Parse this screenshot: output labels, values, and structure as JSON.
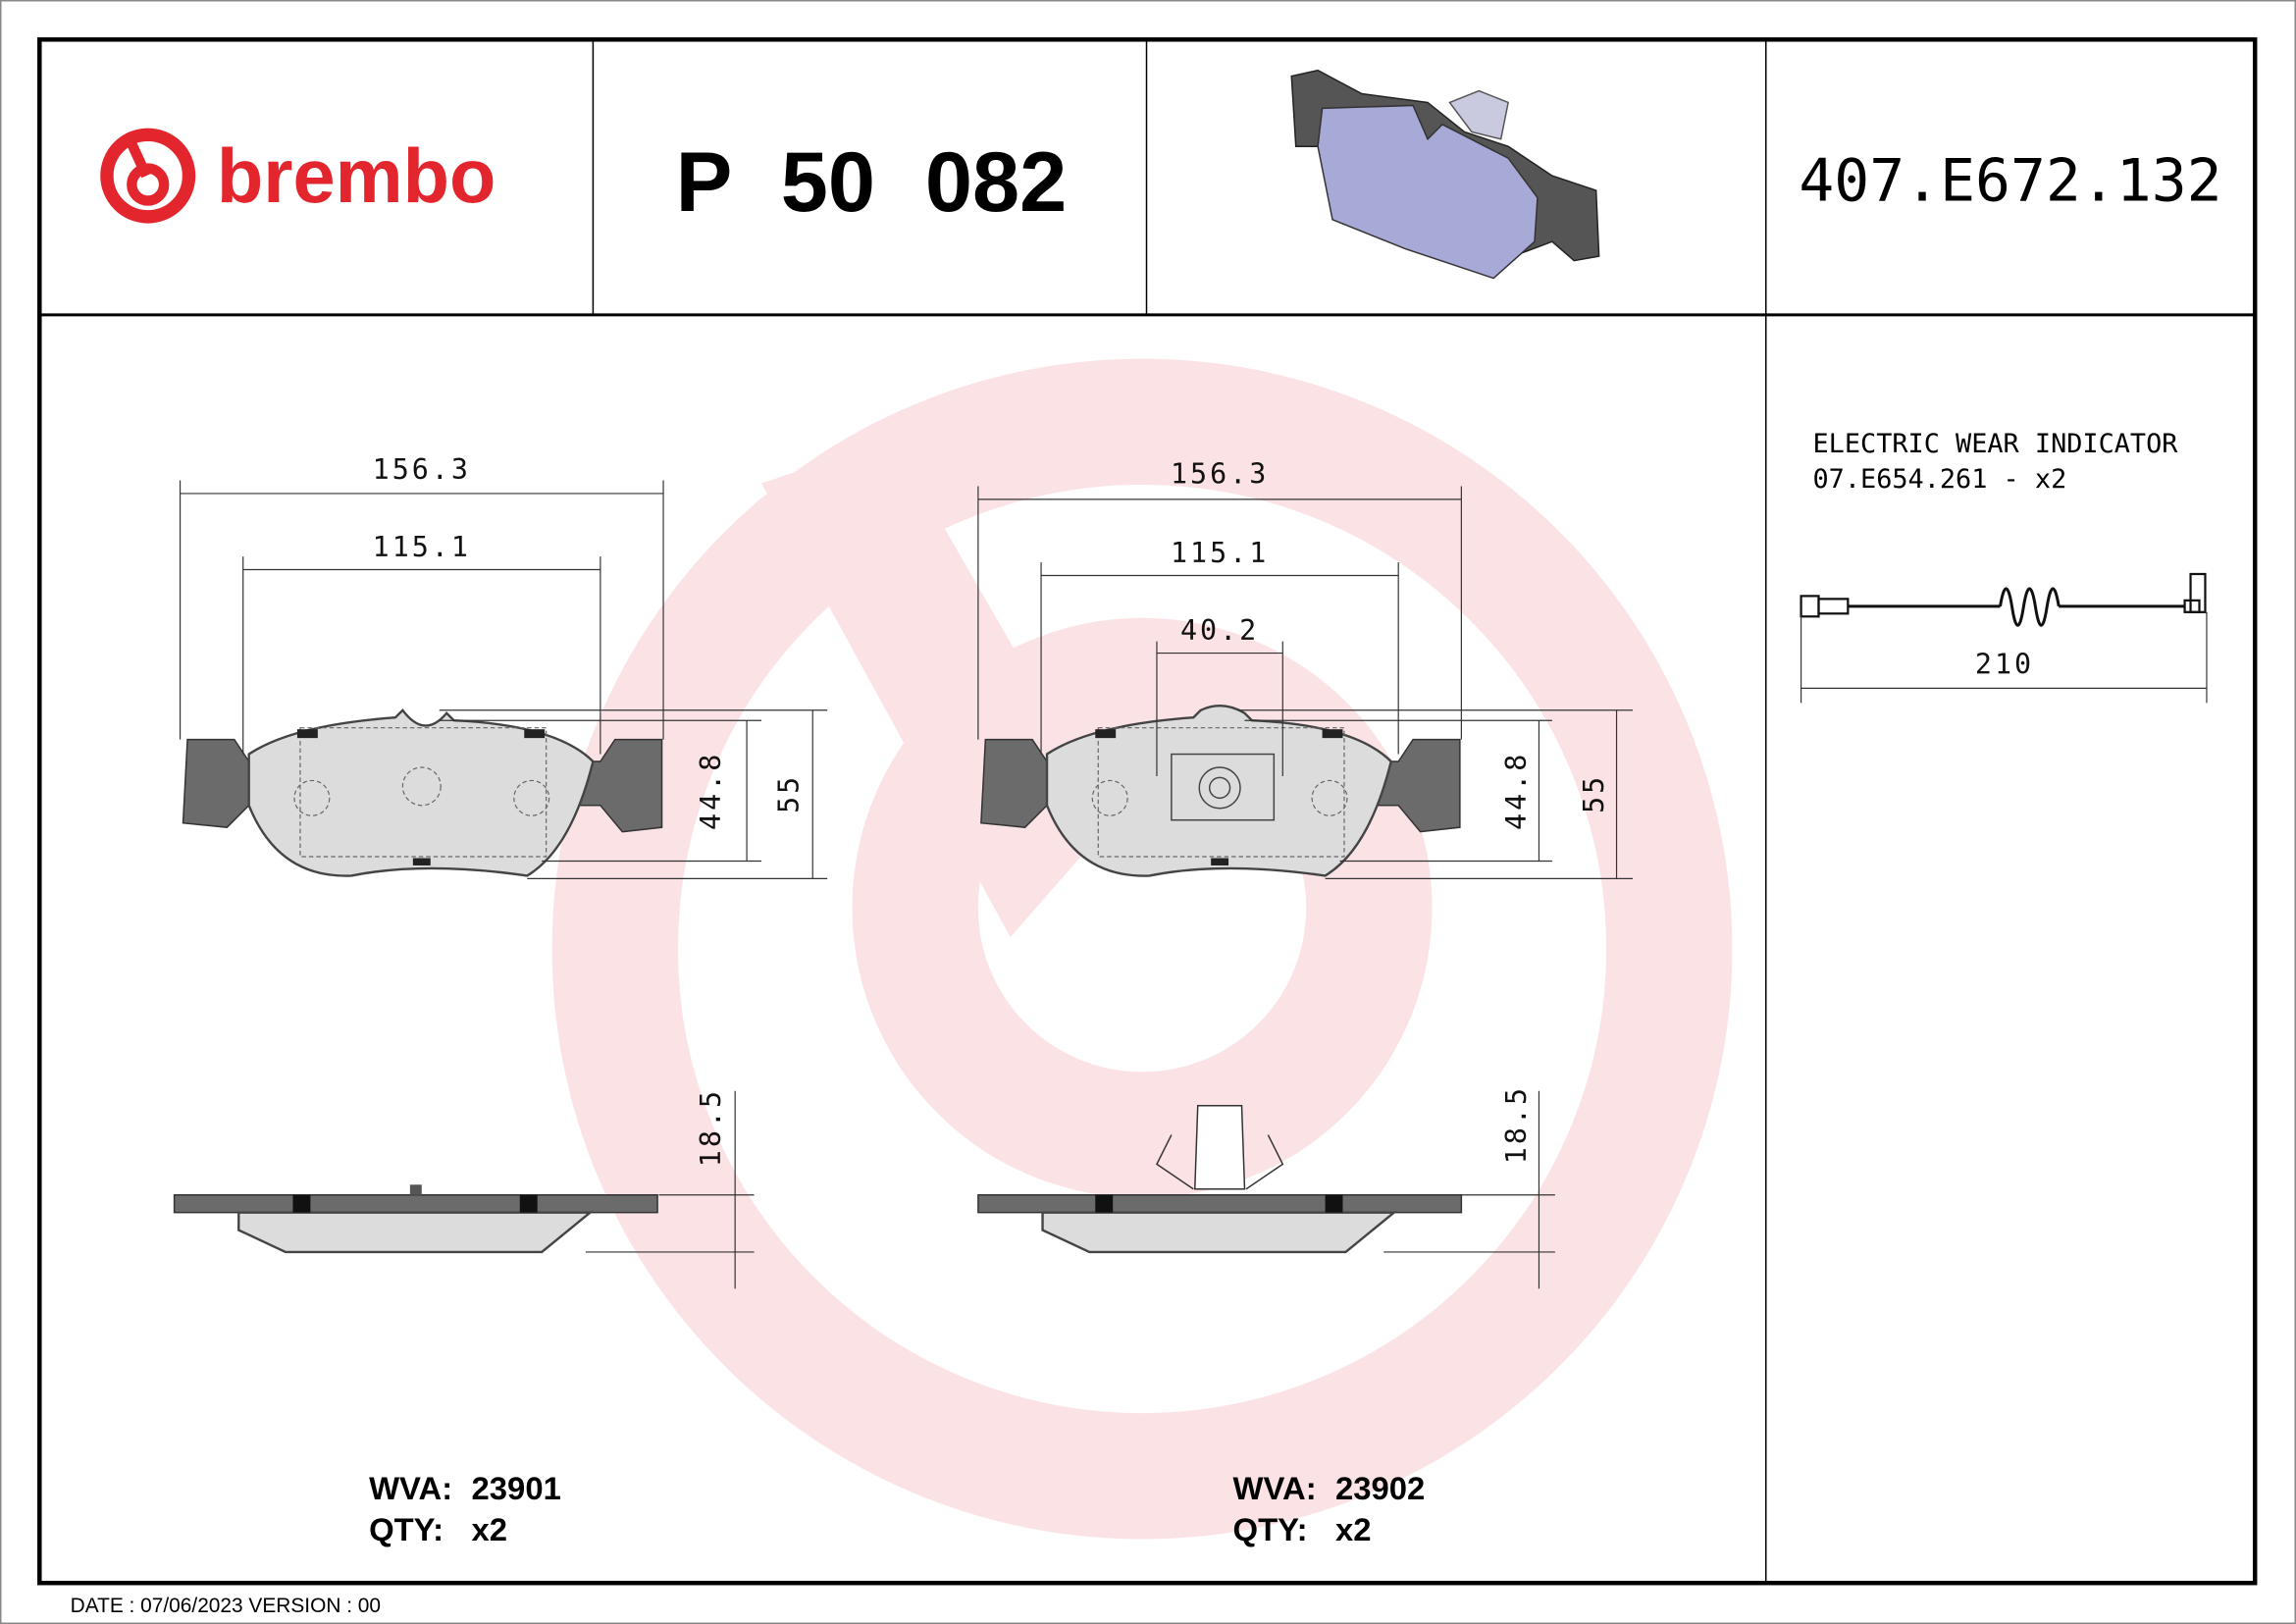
{
  "header": {
    "brand": "brembo",
    "part_number": "P 50 082",
    "reference_code": "407.E672.132"
  },
  "colors": {
    "brand_red": "#e3262e",
    "watermark_pink": "#fbe3e5",
    "pad_view_blue": "#a7a9d6"
  },
  "drawing_left": {
    "width_overall": "156.3",
    "width_inner": "115.1",
    "height_inner": "44.8",
    "height_overall": "55",
    "thickness": "18.5",
    "wva_label": "WVA:",
    "wva_value": "23901",
    "qty_label": "QTY:",
    "qty_value": "x2"
  },
  "drawing_right": {
    "width_overall": "156.3",
    "width_inner": "115.1",
    "sensor_width": "40.2",
    "height_inner": "44.8",
    "height_overall": "55",
    "thickness": "18.5",
    "wva_label": "WVA:",
    "wva_value": "23902",
    "qty_label": "QTY:",
    "qty_value": "x2"
  },
  "wear_indicator": {
    "title": "ELECTRIC WEAR INDICATOR",
    "code": "07.E654.261 - x2",
    "length": "210"
  },
  "footer": {
    "date_version": "DATE : 07/06/2023 VERSION : 00"
  }
}
